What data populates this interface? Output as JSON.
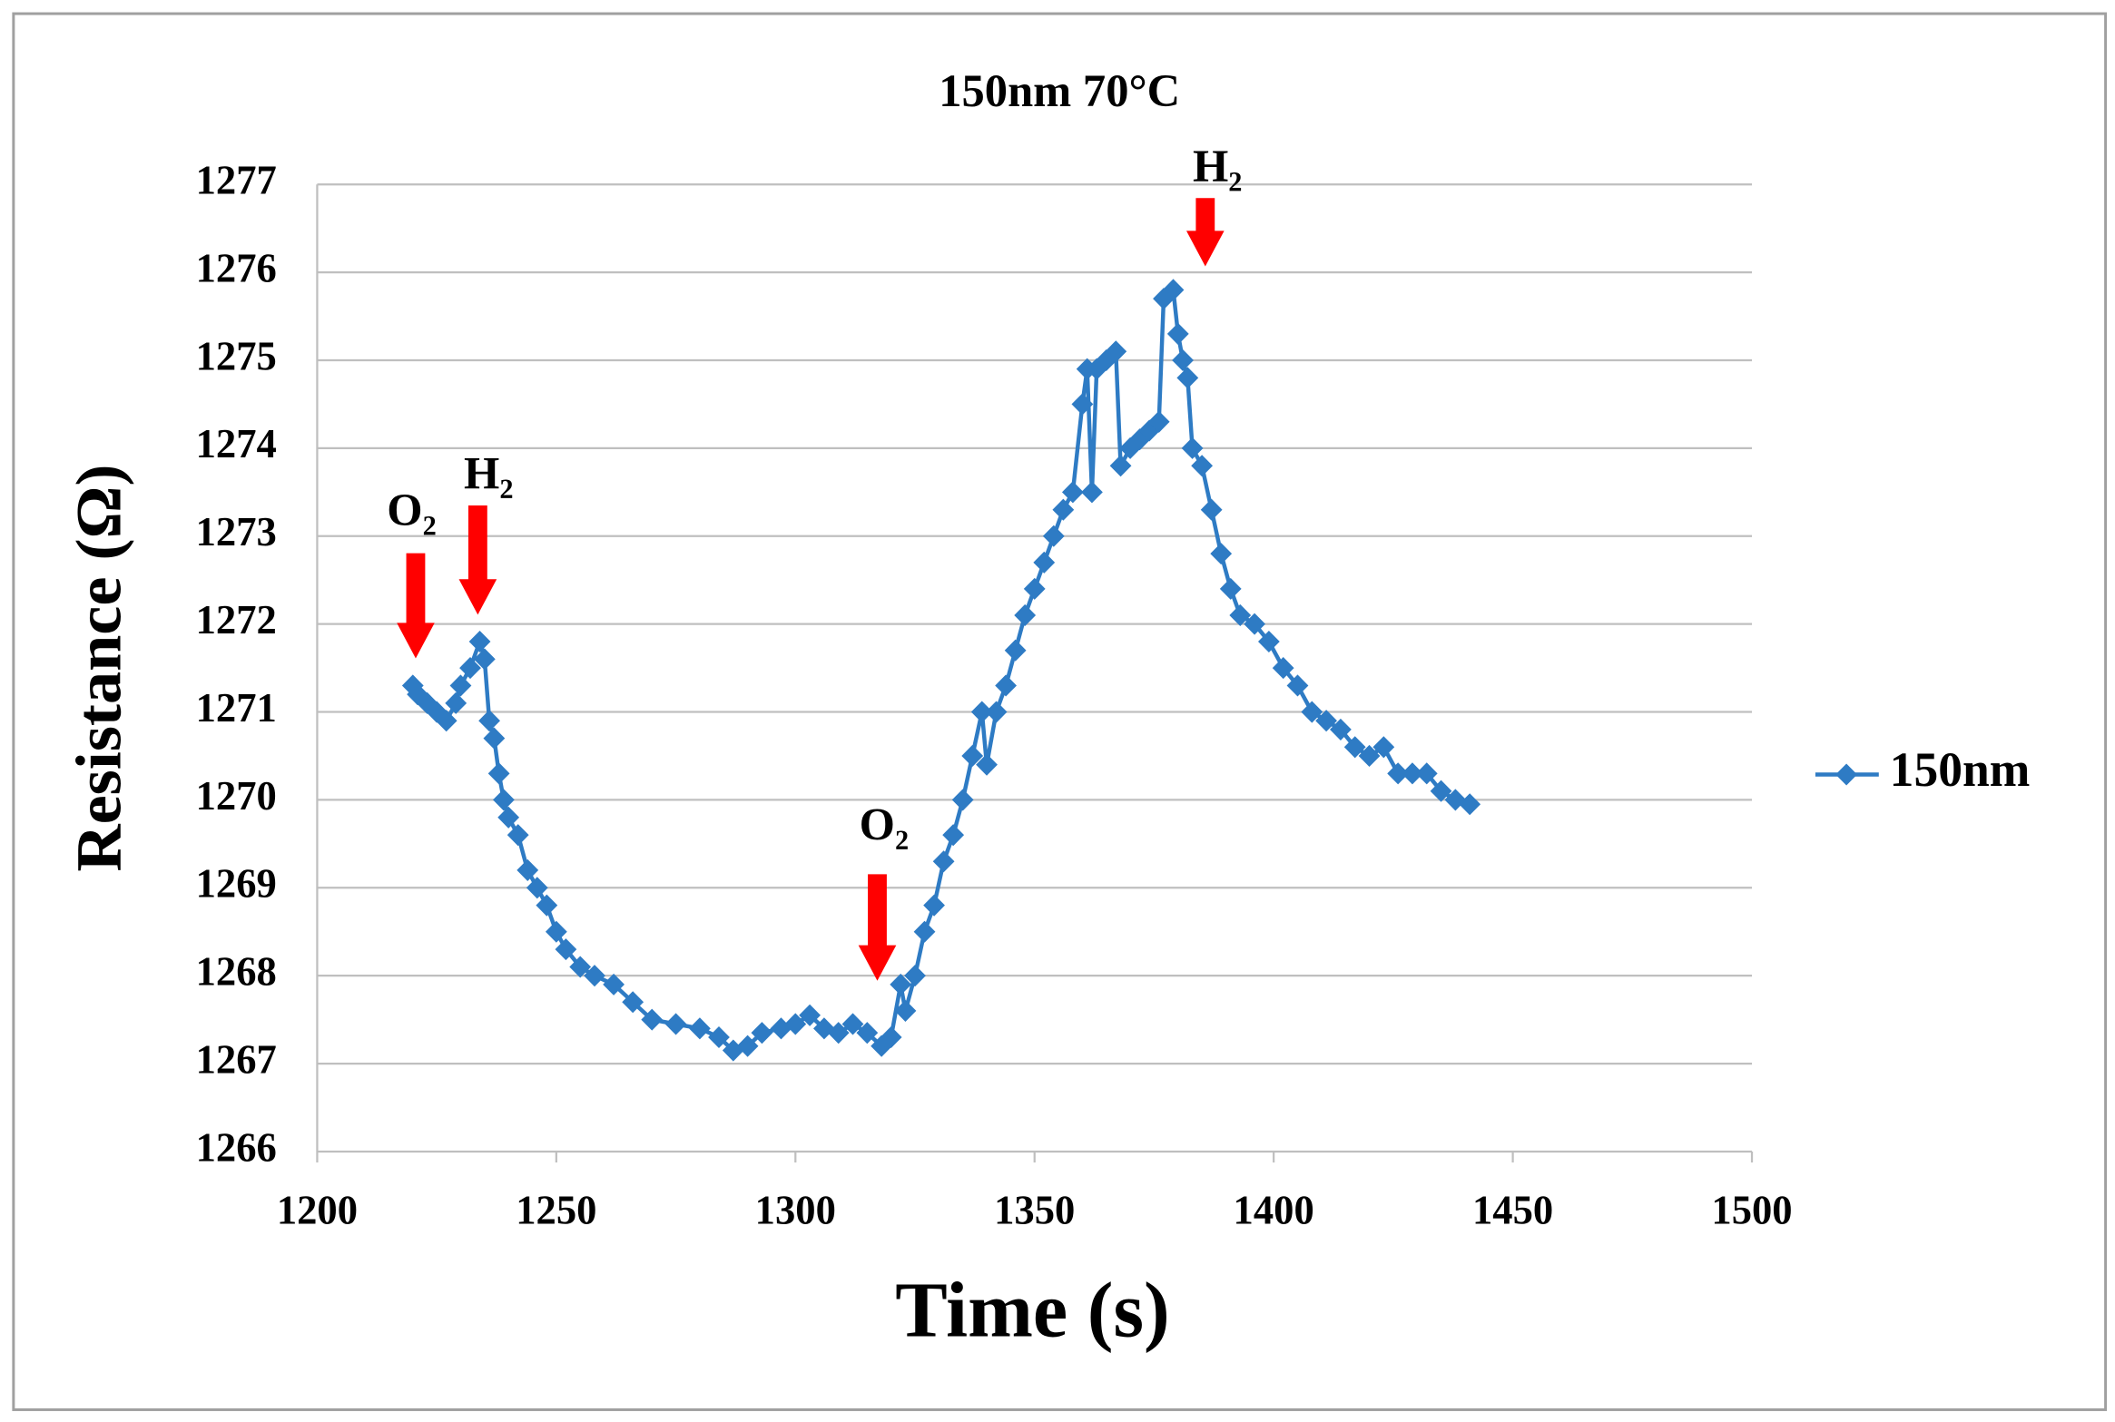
{
  "chart_data": {
    "type": "line",
    "title": "150nm 70°C",
    "x_label": "Time (s)",
    "y_label": "Resistance (Ω)",
    "x": [
      1220,
      1221,
      1223,
      1225,
      1227,
      1229,
      1230,
      1232,
      1234,
      1235,
      1236,
      1237,
      1238,
      1239,
      1240,
      1242,
      1244,
      1246,
      1248,
      1250,
      1252,
      1255,
      1258,
      1262,
      1266,
      1270,
      1275,
      1280,
      1284,
      1287,
      1290,
      1293,
      1297,
      1300,
      1303,
      1306,
      1309,
      1312,
      1315,
      1318,
      1320,
      1322,
      1323,
      1325,
      1327,
      1329,
      1331,
      1333,
      1335,
      1337,
      1339,
      1340,
      1342,
      1344,
      1346,
      1348,
      1350,
      1352,
      1354,
      1356,
      1358,
      1360,
      1361,
      1362,
      1363,
      1365,
      1367,
      1368,
      1370,
      1372,
      1374,
      1376,
      1377,
      1379,
      1380,
      1381,
      1382,
      1383,
      1385,
      1387,
      1389,
      1391,
      1393,
      1396,
      1399,
      1402,
      1405,
      1408,
      1411,
      1414,
      1417,
      1420,
      1423,
      1426,
      1429,
      1432,
      1435,
      1438,
      1441
    ],
    "series": [
      {
        "name": "150nm",
        "color": "#2e7bc4",
        "values": [
          1271.3,
          1271.2,
          1271.1,
          1271.0,
          1270.9,
          1271.1,
          1271.3,
          1271.5,
          1271.8,
          1271.6,
          1270.9,
          1270.7,
          1270.3,
          1270.0,
          1269.8,
          1269.6,
          1269.2,
          1269.0,
          1268.8,
          1268.5,
          1268.3,
          1268.1,
          1268.0,
          1267.9,
          1267.7,
          1267.5,
          1267.45,
          1267.4,
          1267.3,
          1267.15,
          1267.2,
          1267.35,
          1267.4,
          1267.45,
          1267.55,
          1267.4,
          1267.35,
          1267.45,
          1267.35,
          1267.2,
          1267.3,
          1267.9,
          1267.6,
          1268.0,
          1268.5,
          1268.8,
          1269.3,
          1269.6,
          1270.0,
          1270.5,
          1271.0,
          1270.4,
          1271.0,
          1271.3,
          1271.7,
          1272.1,
          1272.4,
          1272.7,
          1273.0,
          1273.3,
          1273.5,
          1274.5,
          1274.9,
          1273.5,
          1274.9,
          1275.0,
          1275.1,
          1273.8,
          1274.0,
          1274.1,
          1274.2,
          1274.3,
          1275.7,
          1275.8,
          1275.3,
          1275.0,
          1274.8,
          1274.0,
          1273.8,
          1273.3,
          1272.8,
          1272.4,
          1272.1,
          1272.0,
          1271.8,
          1271.5,
          1271.3,
          1271.0,
          1270.9,
          1270.8,
          1270.6,
          1270.5,
          1270.6,
          1270.3,
          1270.3,
          1270.3,
          1270.1,
          1270.0,
          1269.95
        ]
      }
    ],
    "xlim": [
      1200,
      1500
    ],
    "xticks": [
      1200,
      1250,
      1300,
      1350,
      1400,
      1450,
      1500
    ],
    "ylim": [
      1266,
      1277
    ],
    "yticks": [
      1266,
      1267,
      1268,
      1269,
      1270,
      1271,
      1272,
      1273,
      1274,
      1275,
      1276,
      1277
    ],
    "grid": true,
    "legend": "right",
    "annotations": [
      "O₂",
      "H₂",
      "O₂",
      "H₂"
    ]
  }
}
